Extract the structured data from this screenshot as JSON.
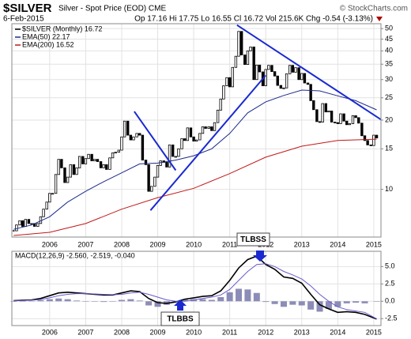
{
  "chart_data": [
    {
      "type": "candlestick",
      "title": "$SILVER",
      "subtitle": "Silver - Spot Price (EOD) CME",
      "source": "© StockCharts.com",
      "date": "6-Feb-2015",
      "quote": "Op 17.16 Hi 17.75 Lo 16.55 Cl 16.72 Vol 215.6K Chg -0.54 (-3.13%)",
      "log": true,
      "grid": true,
      "xlim": [
        2004.95,
        2015.2
      ],
      "xticks": [
        2006,
        2007,
        2008,
        2009,
        2010,
        2011,
        2012,
        2013,
        2014,
        2015
      ],
      "ylim": [
        6.2,
        52.5
      ],
      "yticks": [
        10,
        15,
        20,
        25,
        30,
        35,
        40,
        45,
        50
      ],
      "series": [
        {
          "name": "$SILVER (Monthly) 16.72",
          "color": "#000000",
          "x": [
            2005,
            2005.08,
            2005.17,
            2005.25,
            2005.33,
            2005.42,
            2005.5,
            2005.58,
            2005.67,
            2005.75,
            2005.83,
            2005.92,
            2006,
            2006.08,
            2006.17,
            2006.25,
            2006.33,
            2006.42,
            2006.5,
            2006.58,
            2006.67,
            2006.75,
            2006.83,
            2006.92,
            2007,
            2007.08,
            2007.17,
            2007.25,
            2007.33,
            2007.42,
            2007.5,
            2007.58,
            2007.67,
            2007.75,
            2007.83,
            2007.92,
            2008,
            2008.08,
            2008.17,
            2008.25,
            2008.33,
            2008.42,
            2008.5,
            2008.58,
            2008.67,
            2008.75,
            2008.83,
            2008.92,
            2009,
            2009.08,
            2009.17,
            2009.25,
            2009.33,
            2009.42,
            2009.5,
            2009.58,
            2009.67,
            2009.75,
            2009.83,
            2009.92,
            2010,
            2010.08,
            2010.17,
            2010.25,
            2010.33,
            2010.42,
            2010.5,
            2010.58,
            2010.67,
            2010.75,
            2010.83,
            2010.92,
            2011,
            2011.08,
            2011.17,
            2011.25,
            2011.33,
            2011.42,
            2011.5,
            2011.58,
            2011.67,
            2011.75,
            2011.83,
            2011.92,
            2012,
            2012.08,
            2012.17,
            2012.25,
            2012.33,
            2012.42,
            2012.5,
            2012.58,
            2012.67,
            2012.75,
            2012.83,
            2012.92,
            2013,
            2013.08,
            2013.17,
            2013.25,
            2013.33,
            2013.42,
            2013.5,
            2013.58,
            2013.67,
            2013.75,
            2013.83,
            2013.92,
            2014,
            2014.08,
            2014.17,
            2014.25,
            2014.33,
            2014.42,
            2014.5,
            2014.58,
            2014.67,
            2014.75,
            2014.83,
            2014.92,
            2015,
            2015.08
          ],
          "values": [
            6.6,
            7.0,
            7.3,
            6.9,
            7.4,
            7.1,
            7.1,
            6.9,
            7.1,
            7.6,
            8.2,
            8.8,
            9.6,
            9.6,
            11.6,
            13.5,
            12.4,
            10.7,
            11.3,
            12.8,
            11.6,
            12.4,
            13.9,
            12.9,
            13.6,
            14.2,
            13.3,
            13.5,
            13.2,
            12.4,
            12.8,
            12.2,
            13.7,
            14.4,
            14.5,
            14.8,
            16.9,
            19.8,
            17.2,
            16.4,
            16.9,
            17.5,
            17.2,
            13.4,
            12.8,
            9.8,
            10.3,
            11.3,
            12.7,
            13.3,
            13.1,
            12.5,
            15.6,
            13.9,
            13.9,
            15.0,
            16.6,
            16.3,
            18.5,
            16.9,
            16.2,
            16.4,
            17.5,
            18.7,
            18.4,
            18.7,
            18.0,
            19.5,
            22.1,
            24.7,
            28.2,
            30.6,
            27.9,
            33.9,
            37.9,
            48.6,
            38.4,
            34.9,
            40.0,
            41.6,
            30.0,
            34.7,
            32.4,
            28.2,
            33.2,
            34.6,
            32.5,
            31.1,
            28.3,
            27.5,
            27.6,
            31.8,
            34.6,
            32.3,
            33.8,
            30.0,
            31.9,
            29.0,
            28.6,
            24.3,
            22.2,
            19.7,
            19.6,
            23.6,
            21.7,
            21.9,
            19.6,
            19.5,
            19.3,
            21.3,
            19.8,
            19.1,
            19.3,
            20.9,
            20.5,
            19.4,
            17.1,
            16.3,
            15.6,
            15.5,
            17.2,
            16.72
          ]
        },
        {
          "name": "EMA(50) 22.17",
          "color": "#1c2a8a",
          "x": [
            2005,
            2005.5,
            2006,
            2006.5,
            2007,
            2007.5,
            2008,
            2008.5,
            2009,
            2009.5,
            2010,
            2010.5,
            2011,
            2011.5,
            2012,
            2012.5,
            2013,
            2013.5,
            2014,
            2014.5,
            2015.08
          ],
          "values": [
            6.7,
            7.0,
            7.6,
            8.8,
            9.8,
            10.8,
            11.8,
            12.9,
            13.0,
            13.4,
            14.0,
            15.0,
            17.5,
            21.5,
            24.0,
            25.6,
            27.0,
            26.8,
            25.5,
            24.3,
            22.17
          ]
        },
        {
          "name": "EMA(200) 16.52",
          "color": "#c01818",
          "x": [
            2005,
            2006,
            2007,
            2008,
            2009,
            2010,
            2011,
            2012,
            2013,
            2014,
            2015.08
          ],
          "values": [
            6.3,
            6.5,
            7.1,
            8.2,
            9.2,
            10.1,
            11.7,
            13.8,
            15.4,
            16.3,
            16.52
          ]
        }
      ],
      "trendlines": [
        {
          "color": "#1a2ad0",
          "x": [
            2008.35,
            2009.5
          ],
          "values": [
            21.8,
            12.1
          ]
        },
        {
          "color": "#1a2ad0",
          "x": [
            2008.8,
            2012.0
          ],
          "values": [
            8.1,
            31.3
          ]
        },
        {
          "color": "#1a2ad0",
          "x": [
            2011.2,
            2015.2
          ],
          "values": [
            51.8,
            20.1
          ]
        }
      ]
    },
    {
      "type": "macd",
      "legend_text": "MACD(12,26,9) -2.560, -2.519, -0.040",
      "grid": true,
      "xlim": [
        2004.95,
        2015.2
      ],
      "xticks": [
        2006,
        2007,
        2008,
        2009,
        2010,
        2011,
        2012,
        2013,
        2014,
        2015
      ],
      "ylim": [
        -3.5,
        7.2
      ],
      "yticks": [
        {
          "value": 5,
          "label": "5.0"
        },
        {
          "value": 2.5,
          "label": "2.5"
        },
        {
          "value": 0,
          "label": "0.0"
        },
        {
          "value": -2.5,
          "label": "-2.5"
        }
      ],
      "x": [
        2005,
        2005.25,
        2005.5,
        2005.75,
        2006,
        2006.25,
        2006.5,
        2006.75,
        2007,
        2007.25,
        2007.5,
        2007.75,
        2008,
        2008.25,
        2008.5,
        2008.75,
        2009,
        2009.25,
        2009.5,
        2009.75,
        2010,
        2010.25,
        2010.5,
        2010.75,
        2011,
        2011.25,
        2011.5,
        2011.75,
        2012,
        2012.25,
        2012.5,
        2012.75,
        2013,
        2013.25,
        2013.5,
        2013.75,
        2014,
        2014.25,
        2014.5,
        2014.75,
        2015.08
      ],
      "series": [
        {
          "kind": "bar",
          "color": "#8c8cb8",
          "values": [
            0,
            0.03,
            0.05,
            0.15,
            0.3,
            0.4,
            0.3,
            0.1,
            0,
            -0.05,
            -0.1,
            -0.05,
            0.2,
            0.3,
            0.1,
            -0.6,
            -0.8,
            -0.5,
            -0.1,
            0.3,
            0.3,
            0.3,
            0.2,
            0.6,
            1.3,
            1.8,
            1.7,
            1.2,
            -0.1,
            -0.4,
            -0.8,
            -0.5,
            -0.6,
            -1.2,
            -1.5,
            -1.1,
            -0.8,
            -0.3,
            -0.2,
            -0.3,
            -0.04
          ]
        },
        {
          "kind": "line",
          "color": "#000000",
          "values": [
            0.1,
            0.15,
            0.2,
            0.4,
            0.8,
            1.2,
            1.3,
            1.2,
            1.1,
            1.0,
            0.9,
            0.9,
            1.2,
            1.5,
            1.4,
            0.4,
            -0.2,
            -0.3,
            -0.1,
            0.3,
            0.5,
            0.7,
            0.8,
            1.5,
            3.0,
            4.8,
            6.0,
            6.5,
            5.3,
            4.6,
            3.5,
            3.3,
            2.6,
            1.0,
            -0.5,
            -1.1,
            -1.6,
            -1.5,
            -1.6,
            -1.9,
            -2.56
          ]
        },
        {
          "kind": "line",
          "color": "#6a5acd",
          "values": [
            0.1,
            0.12,
            0.15,
            0.25,
            0.5,
            0.8,
            1.0,
            1.1,
            1.1,
            1.05,
            1.0,
            0.95,
            1.0,
            1.2,
            1.3,
            1.0,
            0.6,
            0.2,
            0,
            0,
            0.2,
            0.4,
            0.6,
            0.9,
            1.7,
            3.0,
            4.3,
            5.3,
            5.4,
            5.0,
            4.3,
            3.8,
            3.2,
            2.2,
            1.0,
            0,
            -0.8,
            -1.2,
            -1.4,
            -1.6,
            -2.519
          ]
        }
      ],
      "annotations": [
        {
          "text": "TLBSS"
        },
        {
          "text": "TLBBS"
        }
      ]
    }
  ]
}
